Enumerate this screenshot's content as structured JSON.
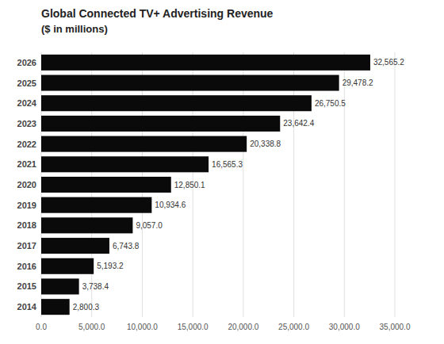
{
  "chart_data": {
    "type": "bar",
    "orientation": "horizontal",
    "title": "Global Connected TV+ Advertising Revenue",
    "subtitle": "($ in millions)",
    "categories": [
      "2026",
      "2025",
      "2024",
      "2023",
      "2022",
      "2021",
      "2020",
      "2019",
      "2018",
      "2017",
      "2016",
      "2015",
      "2014"
    ],
    "values": [
      32565.2,
      29478.2,
      26750.5,
      23642.4,
      20338.8,
      16565.3,
      12850.1,
      10934.6,
      9057.0,
      6743.8,
      5193.2,
      3738.4,
      2800.3
    ],
    "value_labels": [
      "32,565.2",
      "29,478.2",
      "26,750.5",
      "23,642.4",
      "20,338.8",
      "16,565.3",
      "12,850.1",
      "10,934.6",
      "9,057.0",
      "6,743.8",
      "5,193.2",
      "3,738.4",
      "2,800.3"
    ],
    "data_labels": true,
    "color": "#0a0a0a",
    "xlim": [
      0,
      35000
    ],
    "xticks": [
      {
        "value": 0,
        "label": "0.0"
      },
      {
        "value": 5000,
        "label": "5,000.0"
      },
      {
        "value": 10000,
        "label": "10,000.0"
      },
      {
        "value": 15000,
        "label": "15,000.0"
      },
      {
        "value": 20000,
        "label": "20,000.0"
      },
      {
        "value": 25000,
        "label": "25,000.0"
      },
      {
        "value": 30000,
        "label": "30,000.0"
      },
      {
        "value": 35000,
        "label": "35,000.0"
      }
    ],
    "grid": true
  }
}
